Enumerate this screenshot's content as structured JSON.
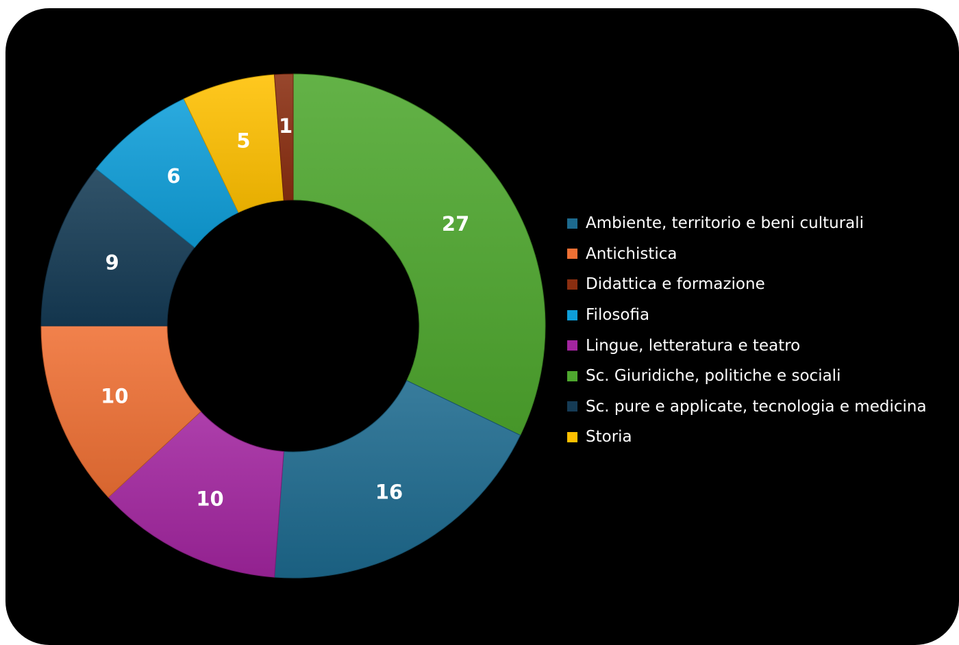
{
  "chart_data": {
    "type": "pie",
    "style": "donut",
    "title": "",
    "legend_position": "right",
    "start_angle": "12 o'clock, clockwise",
    "slices": [
      {
        "label": "Sc. Giuridiche, politiche e sociali",
        "value": 27,
        "color": "#4ea72e"
      },
      {
        "label": "Ambiente, territorio e beni culturali",
        "value": 16,
        "color": "#1d6a8e"
      },
      {
        "label": "Lingue, letteratura e teatro",
        "value": 10,
        "color": "#a2259f"
      },
      {
        "label": "Antichistica",
        "value": 10,
        "color": "#ef7034"
      },
      {
        "label": "Sc. pure e applicate, tecnologia e medicina",
        "value": 9,
        "color": "#153b55"
      },
      {
        "label": "Filosofia",
        "value": 6,
        "color": "#0e9ed9"
      },
      {
        "label": "Storia",
        "value": 5,
        "color": "#ffc000"
      },
      {
        "label": "Didattica e formazione",
        "value": 1,
        "color": "#8a2e10"
      }
    ],
    "legend": [
      {
        "label": "Ambiente, territorio e beni culturali",
        "color": "#1d6a8e"
      },
      {
        "label": "Antichistica",
        "color": "#ef7034"
      },
      {
        "label": "Didattica e formazione",
        "color": "#8a2e10"
      },
      {
        "label": "Filosofia",
        "color": "#0e9ed9"
      },
      {
        "label": "Lingue, letteratura e teatro",
        "color": "#a2259f"
      },
      {
        "label": "Sc. Giuridiche, politiche e sociali",
        "color": "#4ea72e"
      },
      {
        "label": "Sc. pure e applicate, tecnologia e medicina",
        "color": "#153b55"
      },
      {
        "label": "Storia",
        "color": "#ffc000"
      }
    ]
  }
}
